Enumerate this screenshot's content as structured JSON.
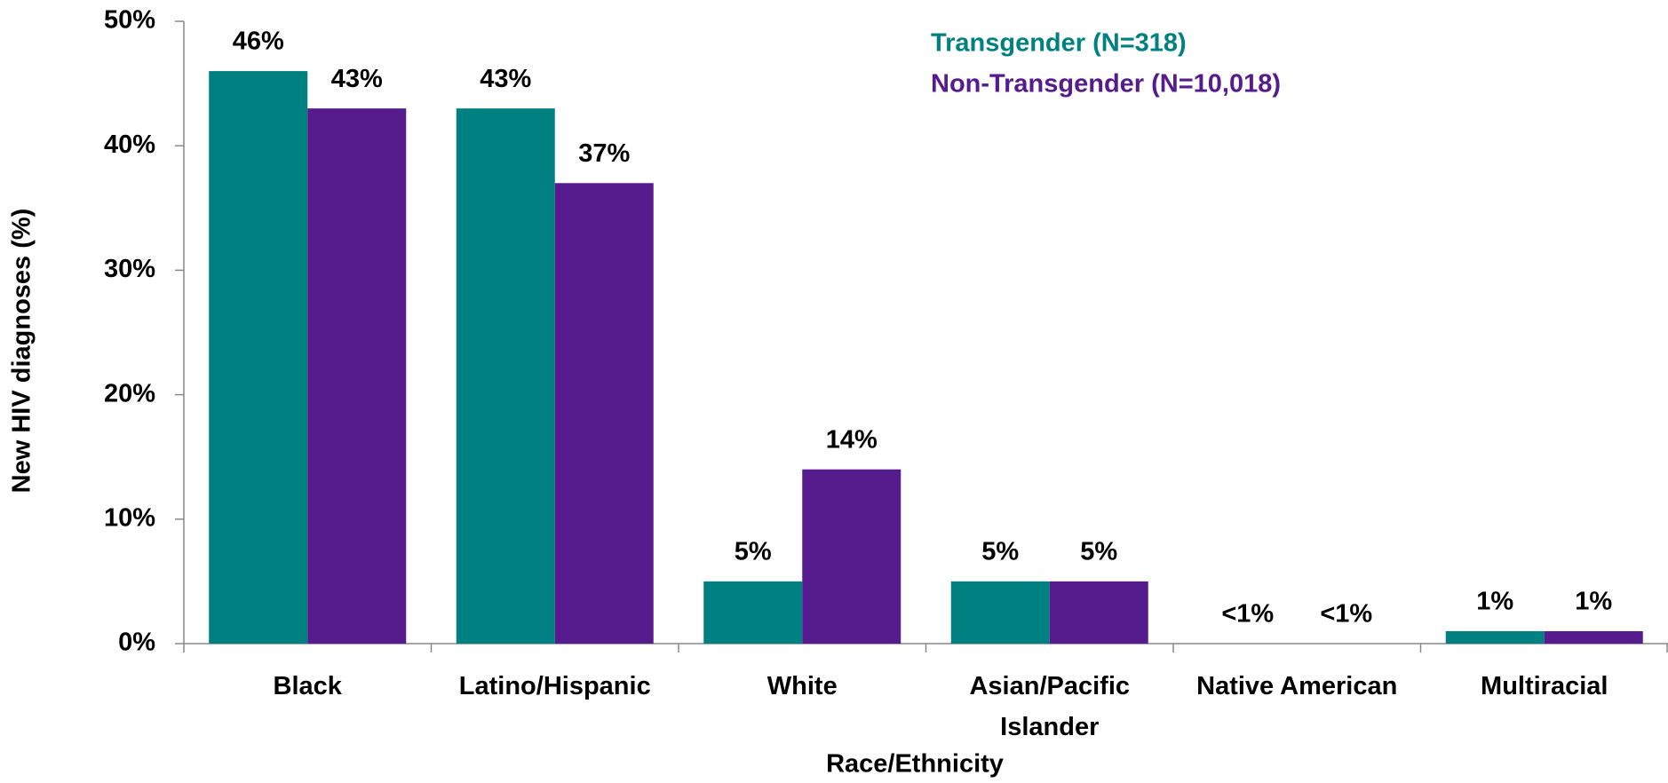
{
  "chart_data": {
    "type": "bar",
    "x_label": "Race/Ethnicity",
    "y_label": "New HIV diagnoses (%)",
    "categories": [
      "Black",
      "Latino/Hispanic",
      "White",
      "Asian/Pacific Islander",
      "Native American",
      "Multiracial"
    ],
    "series": [
      {
        "name": "Transgender (N=318)",
        "color": "#008080",
        "values": [
          46,
          43,
          5,
          5,
          0,
          1
        ],
        "value_labels": [
          "46%",
          "43%",
          "5%",
          "5%",
          "<1%",
          "1%"
        ]
      },
      {
        "name": "Non-Transgender (N=10,018)",
        "color": "#561b8c",
        "values": [
          43,
          37,
          14,
          5,
          0,
          1
        ],
        "value_labels": [
          "43%",
          "37%",
          "14%",
          "5%",
          "<1%",
          "1%"
        ]
      }
    ],
    "ylim": [
      0,
      50
    ],
    "yticks": [
      {
        "value": 0,
        "label": "0%"
      },
      {
        "value": 10,
        "label": "10%"
      },
      {
        "value": 20,
        "label": "20%"
      },
      {
        "value": 30,
        "label": "30%"
      },
      {
        "value": 40,
        "label": "40%"
      },
      {
        "value": 50,
        "label": "50%"
      }
    ],
    "legend": "top-right"
  }
}
